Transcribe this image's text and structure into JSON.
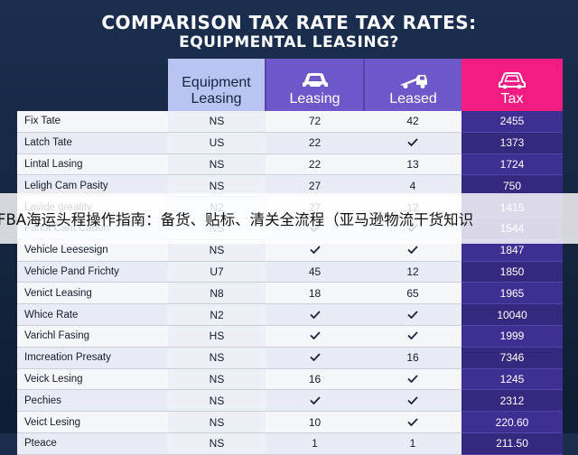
{
  "title": {
    "line1": "COMPARISON TAX RATE TAX RATES:",
    "line2": "EQUIPMENTAL LEASING?"
  },
  "columns": [
    {
      "label_line1": "",
      "label_line2": "",
      "icon": ""
    },
    {
      "label_line1": "Equipment",
      "label_line2": "Leasing",
      "icon": ""
    },
    {
      "label_line1": "Leasing",
      "label_line2": "",
      "icon": "car-icon"
    },
    {
      "label_line1": "Leased",
      "label_line2": "",
      "icon": "tow-truck-icon"
    },
    {
      "label_line1": "Tax",
      "label_line2": "",
      "icon": "car-icon"
    }
  ],
  "rows": [
    {
      "label": "Fix Tate",
      "c1": "NS",
      "c2": "72",
      "c3": "42",
      "tax": "2455"
    },
    {
      "label": "Latch Tate",
      "c1": "US",
      "c2": "22",
      "c3": "✓",
      "tax": "1373"
    },
    {
      "label": "Lintal Lasing",
      "c1": "NS",
      "c2": "22",
      "c3": "13",
      "tax": "1724"
    },
    {
      "label": "Leligh Cam Pasity",
      "c1": "NS",
      "c2": "27",
      "c3": "4",
      "tax": "750"
    },
    {
      "label": "Lavide greatity",
      "c1": "N2",
      "c2": "27",
      "c3": "12",
      "tax": "1415"
    },
    {
      "label": "Fanut Cant Cadon",
      "c1": "NS",
      "c2": "✓",
      "c3": "✓",
      "tax": "1544"
    },
    {
      "label": "Vehicle Leesesign",
      "c1": "NS",
      "c2": "✓",
      "c3": "✓",
      "tax": "1847"
    },
    {
      "label": "Vehicle Pand Frichty",
      "c1": "U7",
      "c2": "45",
      "c3": "12",
      "tax": "1850"
    },
    {
      "label": "Venict Leasing",
      "c1": "N8",
      "c2": "18",
      "c3": "65",
      "tax": "1965"
    },
    {
      "label": "Whice Rate",
      "c1": "N2",
      "c2": "✓",
      "c3": "✓",
      "tax": "10040"
    },
    {
      "label": "Varichl Fasing",
      "c1": "HS",
      "c2": "✓",
      "c3": "✓",
      "tax": "1999"
    },
    {
      "label": "Imcreation Presaty",
      "c1": "NS",
      "c2": "✓",
      "c3": "16",
      "tax": "7346"
    },
    {
      "label": "Veick Lesing",
      "c1": "NS",
      "c2": "16",
      "c3": "✓",
      "tax": "1245"
    },
    {
      "label": "Pechies",
      "c1": "NS",
      "c2": "✓",
      "c3": "✓",
      "tax": "2312"
    },
    {
      "label": "Veict Lesing",
      "c1": "NS",
      "c2": "10",
      "c3": "✓",
      "tax": "220.60"
    },
    {
      "label": "Pteace",
      "c1": "NS",
      "c2": "1",
      "c3": "1",
      "tax": "211.50"
    }
  ],
  "banner": {
    "text": "FBA海运头程操作指南：备货、贴标、清关全流程（亚马逊物流干货知识"
  },
  "colors": {
    "background": "#1b2e4f",
    "col_equipment": "#b9c4f2",
    "col_leasing": "#6f58c9",
    "col_tax_header": "#f21c83",
    "col_tax_body": "#3e2f93"
  }
}
